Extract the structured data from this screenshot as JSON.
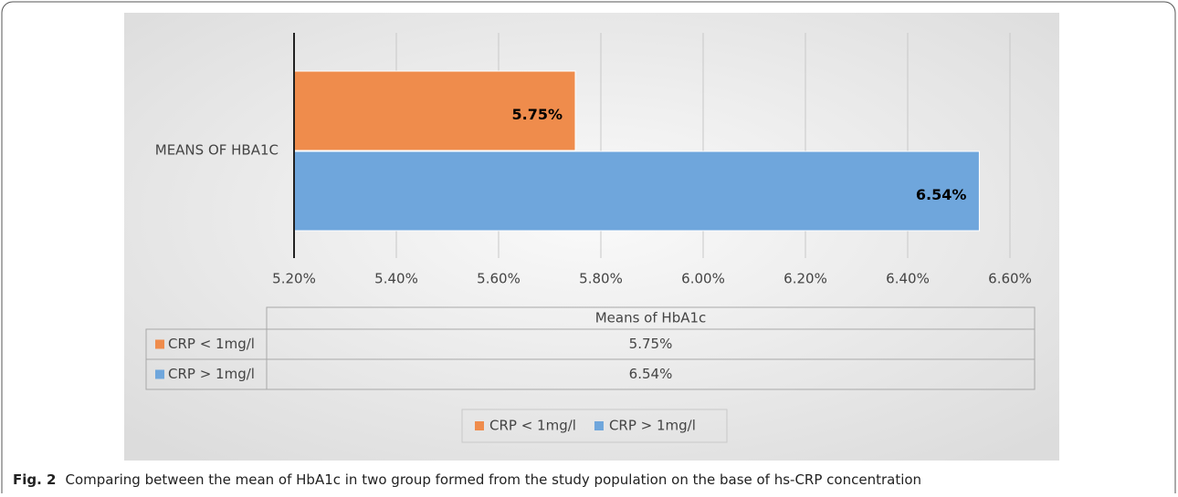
{
  "chart_data": {
    "type": "hbar",
    "categories": [
      "MEANS OF HBA1C"
    ],
    "series": [
      {
        "name": "CRP < 1mg/l",
        "color": "#ef8c4c",
        "values": [
          5.75
        ],
        "value_labels": [
          "5.75%"
        ]
      },
      {
        "name": "CRP > 1mg/l",
        "color": "#6fa6dc",
        "values": [
          6.54
        ],
        "value_labels": [
          "6.54%"
        ]
      }
    ],
    "xlim": [
      5.2,
      6.6
    ],
    "xticks": [
      {
        "value": 5.2,
        "label": "5.20%"
      },
      {
        "value": 5.4,
        "label": "5.40%"
      },
      {
        "value": 5.6,
        "label": "5.60%"
      },
      {
        "value": 5.8,
        "label": "5.80%"
      },
      {
        "value": 6.0,
        "label": "6.00%"
      },
      {
        "value": 6.2,
        "label": "6.20%"
      },
      {
        "value": 6.4,
        "label": "6.40%"
      },
      {
        "value": 6.6,
        "label": "6.60%"
      }
    ],
    "grid": true,
    "table_header": "Means of HbA1c",
    "legend": "bottom"
  },
  "caption": {
    "label": "Fig. 2",
    "text": "Comparing between the mean of HbA1c in two group formed from the study population on the base of hs-CRP concentration"
  }
}
